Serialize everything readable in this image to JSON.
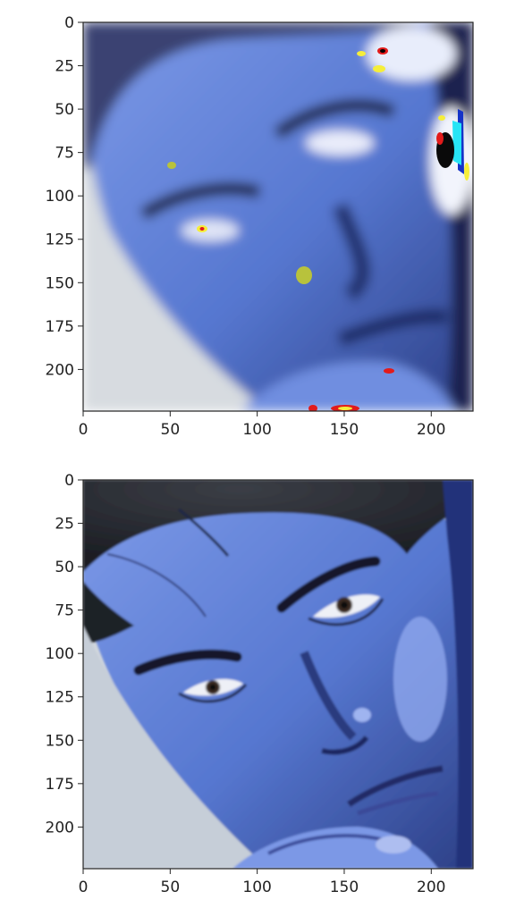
{
  "panels": [
    {
      "name": "heatmap-overlay-panel",
      "image_desc": "blurred blue-tinted face with sparse saliency hotspots",
      "xlim": [
        0,
        224
      ],
      "ylim": [
        224,
        0
      ],
      "xticks": [
        0,
        50,
        100,
        150,
        200
      ],
      "yticks": [
        0,
        25,
        50,
        75,
        100,
        125,
        150,
        175,
        200
      ]
    },
    {
      "name": "original-image-panel",
      "image_desc": "sharp blue-tinted face resting chin on hand",
      "xlim": [
        0,
        224
      ],
      "ylim": [
        224,
        0
      ],
      "xticks": [
        0,
        50,
        100,
        150,
        200
      ],
      "yticks": [
        0,
        25,
        50,
        75,
        100,
        125,
        150,
        175,
        200
      ]
    }
  ],
  "colors": {
    "axis": "#222222",
    "background": "#ffffff",
    "face_tint": "#5b7ed6",
    "backdrop": "#c9d2dc",
    "hair": "#2a2d35",
    "hotspot_yellow": "#f5ee3a",
    "hotspot_red": "#e21b1b",
    "hotspot_cyan": "#27e4f5",
    "hotspot_olive": "#b8c23c"
  }
}
